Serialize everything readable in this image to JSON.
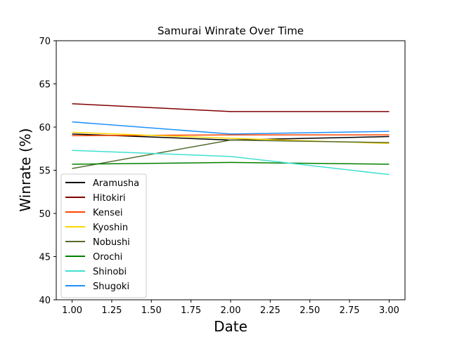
{
  "chart_data": {
    "type": "line",
    "title": "Samurai Winrate Over Time",
    "xlabel": "Date",
    "ylabel": "Winrate (%)",
    "x": [
      1.0,
      2.0,
      3.0
    ],
    "xlim": [
      0.9,
      3.1
    ],
    "ylim": [
      40,
      70
    ],
    "xticks": [
      "1.00",
      "1.25",
      "1.50",
      "1.75",
      "2.00",
      "2.25",
      "2.50",
      "2.75",
      "3.00"
    ],
    "xtick_values": [
      1.0,
      1.25,
      1.5,
      1.75,
      2.0,
      2.25,
      2.5,
      2.75,
      3.0
    ],
    "yticks": [
      "40",
      "45",
      "50",
      "55",
      "60",
      "65",
      "70"
    ],
    "ytick_values": [
      40,
      45,
      50,
      55,
      60,
      65,
      70
    ],
    "grid": false,
    "legend_position": "lower-left",
    "series": [
      {
        "name": "Aramusha",
        "color": "#000000",
        "values": [
          59.2,
          58.5,
          58.9
        ]
      },
      {
        "name": "Hitokiri",
        "color": "#800000",
        "values": [
          62.7,
          61.8,
          61.8
        ]
      },
      {
        "name": "Kensei",
        "color": "#FF4500",
        "values": [
          59.0,
          59.1,
          59.1
        ]
      },
      {
        "name": "Kyoshin",
        "color": "#FFD700",
        "values": [
          59.4,
          58.7,
          58.1
        ]
      },
      {
        "name": "Nobushi",
        "color": "#556B2F",
        "values": [
          55.2,
          58.5,
          58.2
        ]
      },
      {
        "name": "Orochi",
        "color": "#008000",
        "values": [
          55.7,
          55.9,
          55.7
        ]
      },
      {
        "name": "Shinobi",
        "color": "#40E0D0",
        "values": [
          57.3,
          56.6,
          54.5
        ]
      },
      {
        "name": "Shugoki",
        "color": "#1E90FF",
        "values": [
          60.6,
          59.2,
          59.5
        ]
      }
    ]
  }
}
